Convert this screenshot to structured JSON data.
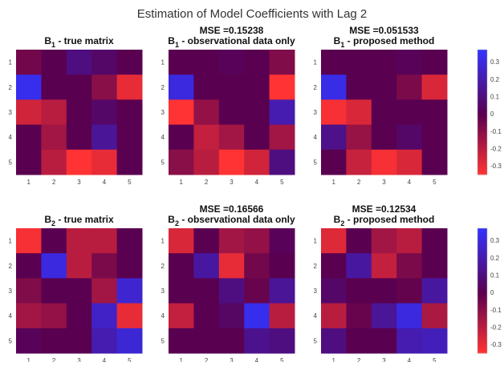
{
  "chart_data": {
    "type": "heatmap",
    "title": "Estimation of Model Coefficients with Lag 2",
    "x_ticks": [
      "1",
      "2",
      "3",
      "4",
      "5"
    ],
    "y_ticks": [
      "1",
      "2",
      "3",
      "4",
      "5"
    ],
    "colorbar": {
      "range": [
        -0.35,
        0.37
      ],
      "ticks": [
        "0.3",
        "0.2",
        "0.1",
        "0",
        "-0.1",
        "-0.2",
        "-0.3"
      ],
      "tick_values": [
        0.3,
        0.2,
        0.1,
        0,
        -0.1,
        -0.2,
        -0.3
      ],
      "colors": {
        "low": "#ff3333",
        "mid": "#5a0050",
        "high": "#3333ff"
      }
    },
    "panels": [
      {
        "mse": "",
        "var": "B",
        "sub": "1",
        "text": " - true matrix",
        "values": [
          [
            -0.05,
            0,
            0.1,
            0.05,
            0
          ],
          [
            0.33,
            0,
            0,
            -0.1,
            -0.3
          ],
          [
            -0.25,
            -0.2,
            0,
            0.05,
            0
          ],
          [
            0,
            -0.15,
            0,
            0.15,
            0
          ],
          [
            0,
            -0.2,
            -0.35,
            -0.3,
            0
          ]
        ]
      },
      {
        "mse": "MSE =0.15238",
        "var": "B",
        "sub": "1",
        "text": " - observational data only",
        "values": [
          [
            0,
            0,
            0.02,
            0,
            -0.08
          ],
          [
            0.3,
            0,
            0,
            0,
            -0.35
          ],
          [
            -0.35,
            -0.12,
            0,
            0,
            0.2
          ],
          [
            0,
            -0.22,
            -0.15,
            0,
            -0.15
          ],
          [
            -0.1,
            -0.2,
            -0.35,
            -0.25,
            0.1
          ]
        ]
      },
      {
        "mse": "MSE =0.051533",
        "var": "B",
        "sub": "1",
        "text": " - proposed method",
        "values": [
          [
            0,
            0,
            0,
            0.02,
            0
          ],
          [
            0.32,
            0,
            0,
            -0.07,
            -0.27
          ],
          [
            -0.33,
            -0.27,
            0,
            0,
            0
          ],
          [
            0.12,
            -0.13,
            0,
            0.05,
            0
          ],
          [
            0,
            -0.23,
            -0.33,
            -0.27,
            0
          ]
        ]
      },
      {
        "mse": "",
        "var": "B",
        "sub": "2",
        "text": " - true matrix",
        "values": [
          [
            -0.33,
            0,
            -0.2,
            -0.2,
            0
          ],
          [
            0,
            0.3,
            -0.2,
            -0.07,
            0
          ],
          [
            -0.08,
            0,
            0,
            -0.15,
            0.27
          ],
          [
            -0.15,
            -0.12,
            0,
            0.25,
            -0.3
          ],
          [
            0.02,
            0,
            0,
            0.2,
            0.28
          ]
        ]
      },
      {
        "mse": "MSE =0.16566",
        "var": "B",
        "sub": "2",
        "text": " - observational data only",
        "values": [
          [
            -0.27,
            0,
            -0.15,
            -0.12,
            0.02
          ],
          [
            0,
            0.17,
            -0.3,
            -0.05,
            0
          ],
          [
            0,
            0,
            0.1,
            -0.03,
            0.15
          ],
          [
            -0.22,
            0,
            0.04,
            0.33,
            -0.2
          ],
          [
            0,
            0,
            0,
            0.13,
            0.1
          ]
        ]
      },
      {
        "mse": "MSE =0.12534",
        "var": "B",
        "sub": "2",
        "text": " - proposed method",
        "values": [
          [
            -0.28,
            0,
            -0.15,
            -0.2,
            0
          ],
          [
            0,
            0.17,
            -0.22,
            -0.07,
            0
          ],
          [
            0.05,
            0,
            0,
            -0.02,
            0.17
          ],
          [
            -0.2,
            -0.03,
            0.15,
            0.3,
            -0.17
          ],
          [
            0.1,
            0,
            0,
            0.2,
            0.22
          ]
        ]
      }
    ]
  }
}
